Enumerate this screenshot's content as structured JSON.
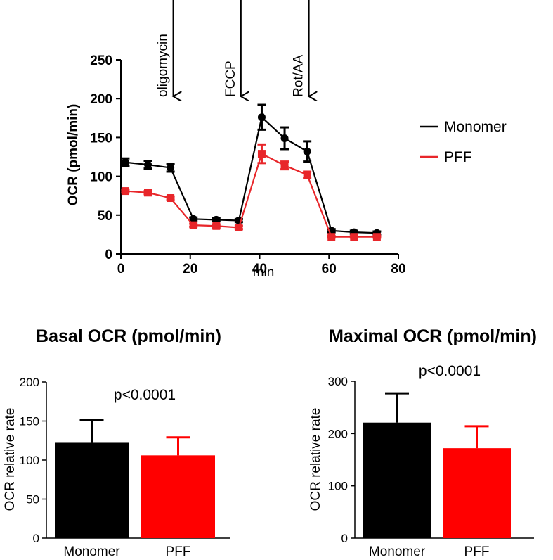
{
  "chart_data": [
    {
      "type": "line",
      "title": "",
      "xlabel": "min",
      "ylabel": "OCR (pmol/min)",
      "xlim": [
        0,
        80
      ],
      "ylim": [
        0,
        250
      ],
      "xticks": [
        "0",
        "20",
        "40",
        "60",
        "80"
      ],
      "yticks": [
        "0",
        "50",
        "100",
        "150",
        "200",
        "250"
      ],
      "x": [
        1.3,
        7.8,
        14.3,
        20.9,
        27.5,
        34.0,
        40.6,
        47.2,
        53.7,
        60.7,
        67.2,
        73.8
      ],
      "series": [
        {
          "name": "Monomer",
          "color": "#000000",
          "marker": "circle",
          "values": [
            118,
            115,
            111,
            45,
            44,
            43,
            176,
            149,
            132,
            30,
            28,
            27
          ],
          "errors": [
            5,
            5,
            5,
            2,
            2,
            2,
            16,
            14,
            13,
            2,
            2,
            2
          ]
        },
        {
          "name": "PFF",
          "color": "#e8262a",
          "marker": "square",
          "values": [
            81,
            79,
            72,
            37,
            36,
            34,
            129,
            114,
            102,
            22,
            22,
            22
          ],
          "errors": [
            2,
            2,
            2,
            2,
            2,
            2,
            12,
            5,
            4,
            1,
            1,
            1
          ]
        }
      ],
      "annotations": [
        {
          "label": "oligomycin",
          "x": 15.1
        },
        {
          "label": "FCCP",
          "x": 34.6
        },
        {
          "label": "Rot/AA",
          "x": 54.2
        }
      ],
      "legend": "right"
    },
    {
      "type": "bar",
      "title": "Basal OCR (pmol/min)",
      "xlabel": "",
      "ylabel": "OCR relative rate",
      "ylim": [
        0,
        200
      ],
      "yticks": [
        "0",
        "50",
        "100",
        "150",
        "200"
      ],
      "categories": [
        "Monomer",
        "PFF"
      ],
      "values": [
        123,
        106
      ],
      "errors": [
        28,
        23
      ],
      "colors": [
        "#000000",
        "#ff0000"
      ],
      "annotation": "p<0.0001"
    },
    {
      "type": "bar",
      "title": "Maximal OCR (pmol/min)",
      "xlabel": "",
      "ylabel": "OCR relative rate",
      "ylim": [
        0,
        300
      ],
      "yticks": [
        "0",
        "100",
        "200",
        "300"
      ],
      "categories": [
        "Monomer",
        "PFF"
      ],
      "values": [
        221,
        172
      ],
      "errors": [
        56,
        42
      ],
      "colors": [
        "#000000",
        "#ff0000"
      ],
      "annotation": "p<0.0001"
    }
  ]
}
